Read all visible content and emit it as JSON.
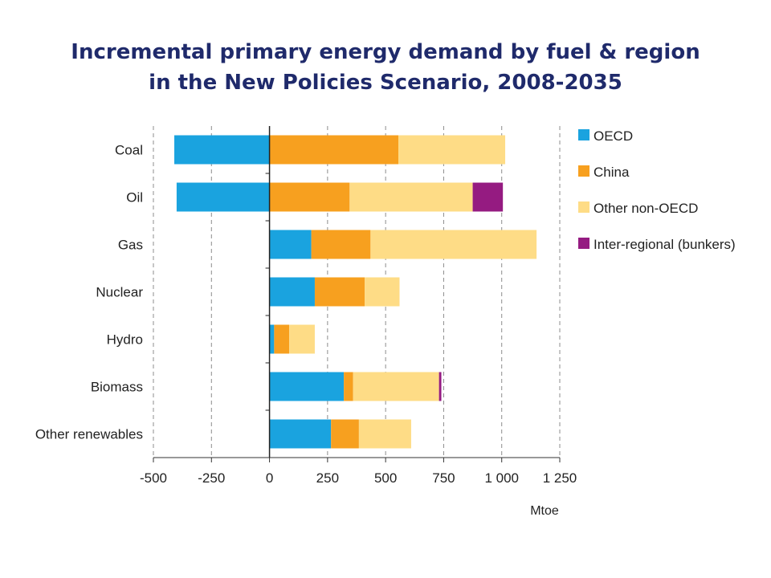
{
  "chart_data": {
    "type": "bar",
    "orientation": "horizontal",
    "stacked": true,
    "title_lines": [
      "Incremental primary energy demand by fuel & region",
      "in the New Policies Scenario, 2008-2035"
    ],
    "xlabel": "Mtoe",
    "ylabel": "",
    "xlim": [
      -500,
      1250
    ],
    "x_ticks": [
      -500,
      -250,
      0,
      250,
      500,
      750,
      1000,
      1250
    ],
    "x_tick_labels": [
      "-500",
      "-250",
      "0",
      "250",
      "500",
      "750",
      "1 000",
      "1 250"
    ],
    "grid": "vertical dashed",
    "legend_position": "right",
    "categories": [
      "Coal",
      "Oil",
      "Gas",
      "Nuclear",
      "Hydro",
      "Biomass",
      "Other renewables"
    ],
    "series": [
      {
        "name": "OECD",
        "color": "#1aa3df",
        "values": [
          -410,
          -400,
          180,
          195,
          20,
          320,
          265
        ]
      },
      {
        "name": "China",
        "color": "#f7a01f",
        "values": [
          555,
          345,
          255,
          215,
          65,
          40,
          120
        ]
      },
      {
        "name": "Other non-OECD",
        "color": "#fedc86",
        "values": [
          460,
          530,
          715,
          150,
          110,
          370,
          225
        ]
      },
      {
        "name": "Inter-regional (bunkers)",
        "color": "#951b81",
        "values": [
          0,
          130,
          0,
          0,
          0,
          10,
          0
        ]
      }
    ]
  }
}
